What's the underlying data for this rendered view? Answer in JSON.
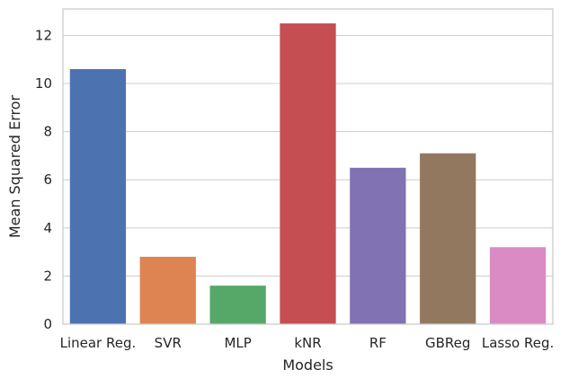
{
  "chart_data": {
    "type": "bar",
    "title": "",
    "xlabel": "Models",
    "ylabel": "Mean Squared Error",
    "categories": [
      "Linear Reg.",
      "SVR",
      "MLP",
      "kNR",
      "RF",
      "GBReg",
      "Lasso Reg."
    ],
    "values": [
      10.6,
      2.8,
      1.6,
      12.5,
      6.5,
      7.1,
      3.2
    ],
    "colors": [
      "#4c72b0",
      "#dd8452",
      "#55a868",
      "#c44e52",
      "#8172b3",
      "#937860",
      "#da8bc3"
    ],
    "yticks": [
      0,
      2,
      4,
      6,
      8,
      10,
      12
    ],
    "ylim": [
      0,
      13.1
    ],
    "grid": true
  }
}
